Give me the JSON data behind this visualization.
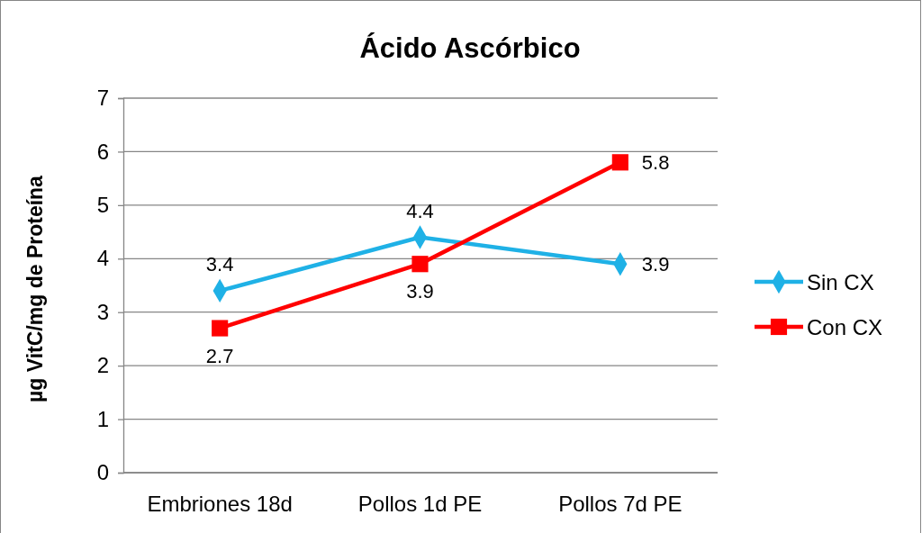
{
  "chart_data": {
    "type": "line",
    "title": "Ácido Ascórbico",
    "ylabel": "µg VitC/mg de Proteína",
    "categories": [
      "Embriones 18d",
      "Pollos 1d PE",
      "Pollos 7d PE"
    ],
    "series": [
      {
        "name": "Sin CX",
        "color": "#1fb1e6",
        "values": [
          3.4,
          4.4,
          3.9
        ],
        "marker": "diamond"
      },
      {
        "name": "Con CX",
        "color": "#ff0000",
        "values": [
          2.7,
          3.9,
          5.8
        ],
        "marker": "square"
      }
    ],
    "ylim": [
      0,
      7
    ],
    "yticks": [
      0,
      1,
      2,
      3,
      4,
      5,
      6,
      7
    ],
    "grid": "y",
    "legend": "right",
    "data_labels": true,
    "line_style": "solid"
  }
}
